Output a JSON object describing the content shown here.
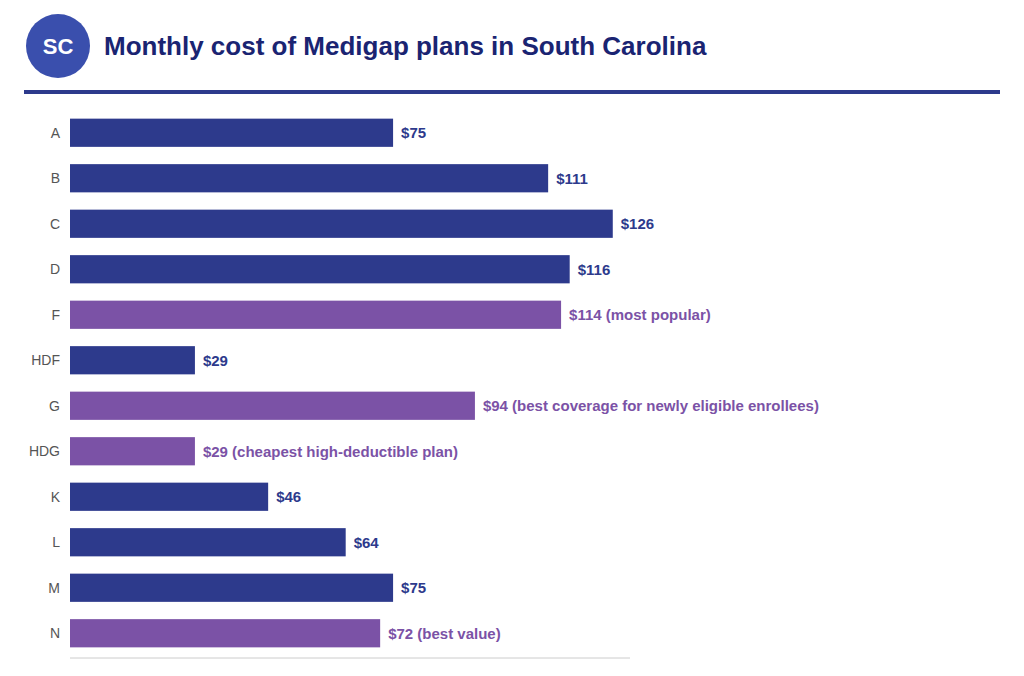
{
  "chart_data": {
    "type": "bar",
    "orientation": "horizontal",
    "title": "Monthly cost of Medigap plans in South Carolina",
    "annotations": [
      {
        "text": "SC"
      }
    ],
    "categories": [
      "A",
      "B",
      "C",
      "D",
      "F",
      "HDF",
      "G",
      "HDG",
      "K",
      "L",
      "M",
      "N"
    ],
    "values": [
      75,
      111,
      126,
      116,
      114,
      29,
      94,
      29,
      46,
      64,
      75,
      72
    ],
    "value_labels": [
      "$75",
      "$111",
      "$126",
      "$116",
      "$114 (most popular)",
      "$29",
      "$94 (best coverage for newly eligible enrollees)",
      "$29 (cheapest high-deductible plan)",
      "$46",
      "$64",
      "$75",
      "$72 (best value)"
    ],
    "colors": [
      "#2d3a8c",
      "#2d3a8c",
      "#2d3a8c",
      "#2d3a8c",
      "#7b52a6",
      "#2d3a8c",
      "#7b52a6",
      "#7b52a6",
      "#2d3a8c",
      "#2d3a8c",
      "#2d3a8c",
      "#7b52a6"
    ],
    "xlim": [
      0,
      130
    ],
    "data_labels": true,
    "tick_labels": "y",
    "grid": false
  }
}
